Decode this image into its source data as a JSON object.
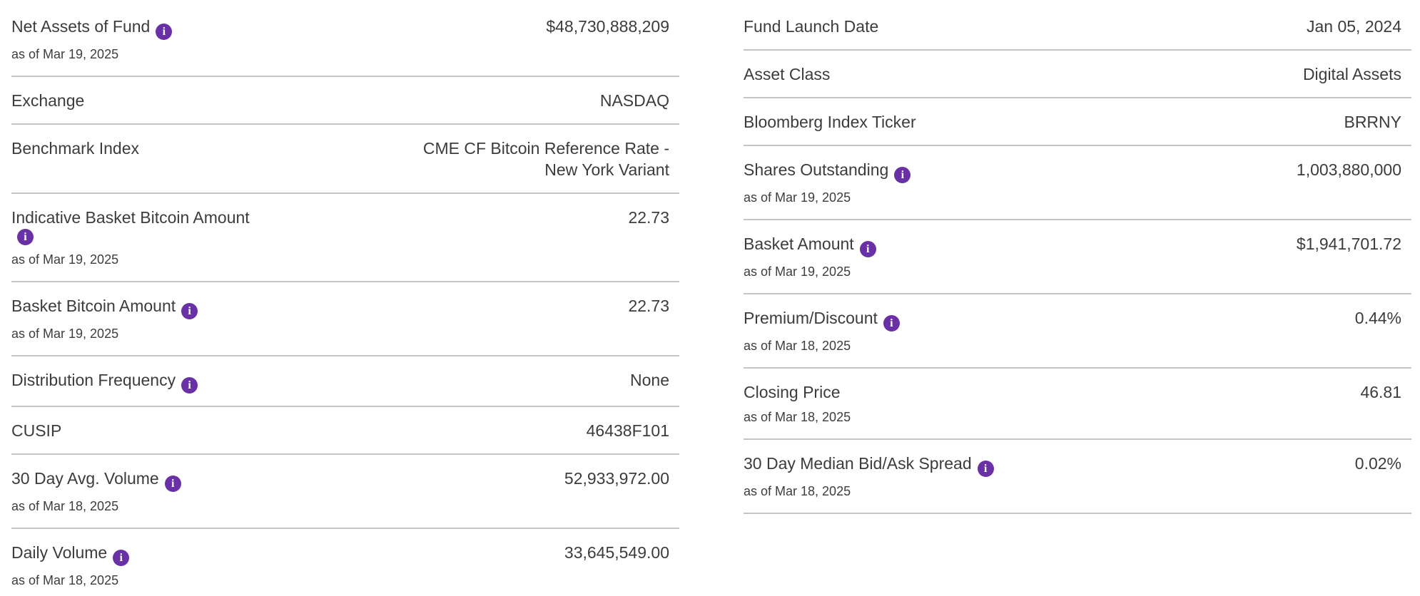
{
  "colors": {
    "accent_purple": "#6a30a5",
    "text": "#3c3c3c",
    "divider": "#c5c5c5",
    "background": "#ffffff"
  },
  "icons": {
    "info_glyph": "i"
  },
  "left_column": {
    "rows": [
      {
        "label": "Net Assets of Fund",
        "as_of": "as of Mar 19, 2025",
        "value": "$48,730,888,209"
      },
      {
        "label": "Exchange",
        "value": "NASDAQ"
      },
      {
        "label": "Benchmark Index",
        "value": "CME CF Bitcoin Reference Rate - New York Variant"
      },
      {
        "label": "Indicative Basket Bitcoin Amount",
        "as_of": "as of Mar 19, 2025",
        "value": "22.73"
      },
      {
        "label": "Basket Bitcoin Amount",
        "as_of": "as of Mar 19, 2025",
        "value": "22.73"
      },
      {
        "label": "Distribution Frequency",
        "value": "None"
      },
      {
        "label": "CUSIP",
        "value": "46438F101"
      },
      {
        "label": "30 Day Avg. Volume",
        "as_of": "as of Mar 18, 2025",
        "value": "52,933,972.00"
      },
      {
        "label": "Daily Volume",
        "as_of": "as of Mar 18, 2025",
        "value": "33,645,549.00"
      }
    ]
  },
  "right_column": {
    "rows": [
      {
        "label": "Fund Launch Date",
        "value": "Jan 05, 2024"
      },
      {
        "label": "Asset Class",
        "value": "Digital Assets"
      },
      {
        "label": "Bloomberg Index Ticker",
        "value": "BRRNY"
      },
      {
        "label": "Shares Outstanding",
        "as_of": "as of Mar 19, 2025",
        "value": "1,003,880,000"
      },
      {
        "label": "Basket Amount",
        "as_of": "as of Mar 19, 2025",
        "value": "$1,941,701.72"
      },
      {
        "label": "Premium/Discount",
        "as_of": "as of Mar 18, 2025",
        "value": "0.44%"
      },
      {
        "label": "Closing Price",
        "as_of": "as of Mar 18, 2025",
        "value": "46.81"
      },
      {
        "label": "30 Day Median Bid/Ask Spread",
        "as_of": "as of Mar 18, 2025",
        "value": "0.02%"
      }
    ]
  }
}
